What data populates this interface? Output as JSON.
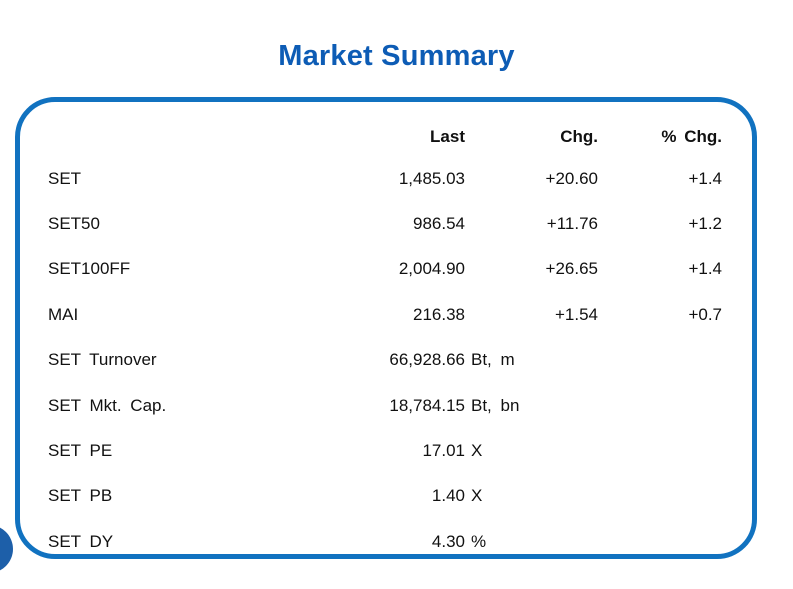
{
  "page": {
    "title": "Market Summary"
  },
  "colors": {
    "title_blue": "#0d5cb5",
    "box_border_blue": "#1172c0",
    "corner_circle_blue": "#1d5fa9",
    "text": "#111111",
    "background": "#ffffff"
  },
  "table": {
    "columns": {
      "last": "Last",
      "chg": "Chg.",
      "pct_chg": "% Chg."
    },
    "rows": [
      {
        "label": "SET",
        "last": "1,485.03",
        "unit": "",
        "chg": "+20.60",
        "pct_chg": "+1.4"
      },
      {
        "label": "SET50",
        "last": "986.54",
        "unit": "",
        "chg": "+11.76",
        "pct_chg": "+1.2"
      },
      {
        "label": "SET100FF",
        "last": "2,004.90",
        "unit": "",
        "chg": "+26.65",
        "pct_chg": "+1.4"
      },
      {
        "label": "MAI",
        "last": "216.38",
        "unit": "",
        "chg": "+1.54",
        "pct_chg": "+0.7"
      },
      {
        "label": "SET Turnover",
        "last": "66,928.66",
        "unit": "Bt, m",
        "chg": "",
        "pct_chg": ""
      },
      {
        "label": "SET Mkt. Cap.",
        "last": "18,784.15",
        "unit": "Bt, bn",
        "chg": "",
        "pct_chg": ""
      },
      {
        "label": "SET PE",
        "last": "17.01",
        "unit": "X",
        "chg": "",
        "pct_chg": ""
      },
      {
        "label": "SET PB",
        "last": "1.40",
        "unit": "X",
        "chg": "",
        "pct_chg": ""
      },
      {
        "label": "SET DY",
        "last": "4.30",
        "unit": "%",
        "chg": "",
        "pct_chg": ""
      }
    ]
  }
}
